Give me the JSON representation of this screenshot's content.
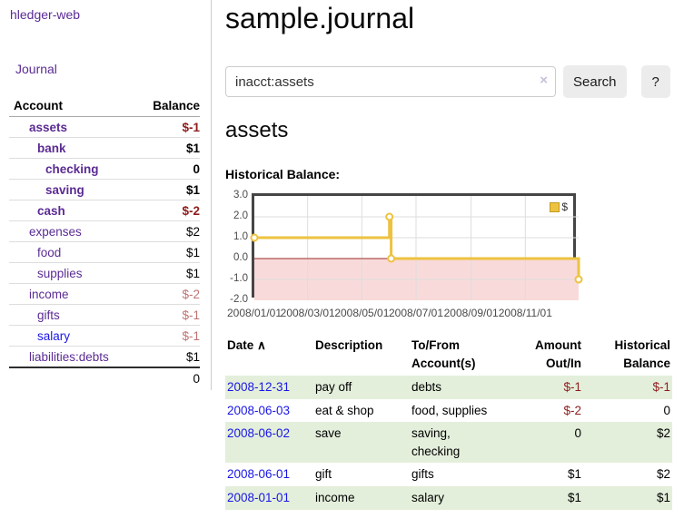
{
  "app": {
    "brand": "hledger-web"
  },
  "nav": {
    "journal": "Journal"
  },
  "header": {
    "title": "sample.journal"
  },
  "search": {
    "query": "inacct:assets",
    "clear_icon": "×",
    "button_label": "Search",
    "help_label": "?"
  },
  "account_page": {
    "heading": "assets",
    "chart_label": "Historical Balance:"
  },
  "colors": {
    "link_purple": "#5b2b94",
    "link_blue": "#1a16e8",
    "negative_strong": "#8f1d1d",
    "negative_soft": "#c17272",
    "row_highlight_green": "#e3efdb",
    "series_gold": "#EDC240"
  },
  "sidebar": {
    "header": {
      "account": "Account",
      "balance": "Balance"
    },
    "accounts": [
      {
        "name": "assets",
        "balance": "$-1",
        "indent": 1,
        "emphasized": true,
        "negative": "strong"
      },
      {
        "name": "bank",
        "balance": "$1",
        "indent": 2,
        "emphasized": true
      },
      {
        "name": "checking",
        "balance": "0",
        "indent": 3,
        "emphasized": true
      },
      {
        "name": "saving",
        "balance": "$1",
        "indent": 3,
        "emphasized": true
      },
      {
        "name": "cash",
        "balance": "$-2",
        "indent": 2,
        "emphasized": true,
        "negative": "strong"
      },
      {
        "name": "expenses",
        "balance": "$2",
        "indent": 1,
        "emphasized": false
      },
      {
        "name": "food",
        "balance": "$1",
        "indent": 2,
        "emphasized": false
      },
      {
        "name": "supplies",
        "balance": "$1",
        "indent": 2,
        "emphasized": false
      },
      {
        "name": "income",
        "balance": "$-2",
        "indent": 1,
        "emphasized": false,
        "negative": "soft"
      },
      {
        "name": "gifts",
        "balance": "$-1",
        "indent": 2,
        "emphasized": false,
        "negative": "soft"
      },
      {
        "name": "salary",
        "balance": "$-1",
        "indent": 2,
        "emphasized": false,
        "negative": "soft",
        "link_color": "blue"
      },
      {
        "name": "liabilities:debts",
        "balance": "$1",
        "indent": 1,
        "emphasized": false
      }
    ],
    "total": "0"
  },
  "chart_data": {
    "type": "line",
    "title": "Historical Balance:",
    "xlim": [
      "2008-01-01",
      "2008-12-31"
    ],
    "ylim": [
      -2,
      3
    ],
    "yticks": [
      {
        "value": 3,
        "label": "3.0"
      },
      {
        "value": 2,
        "label": "2.0"
      },
      {
        "value": 1,
        "label": "1.0"
      },
      {
        "value": 0,
        "label": "0.0"
      },
      {
        "value": -1,
        "label": "-1.0"
      },
      {
        "value": -2,
        "label": "-2.0"
      }
    ],
    "xticks": [
      {
        "date": "2008-01-01",
        "label": "2008/01/01"
      },
      {
        "date": "2008-03-01",
        "label": "2008/03/01"
      },
      {
        "date": "2008-05-01",
        "label": "2008/05/01"
      },
      {
        "date": "2008-07-01",
        "label": "2008/07/01"
      },
      {
        "date": "2008-09-01",
        "label": "2008/09/01"
      },
      {
        "date": "2008-11-01",
        "label": "2008/11/01"
      }
    ],
    "series": [
      {
        "name": "$",
        "color": "#EDC240",
        "step": true,
        "points": [
          [
            "2008-01-01",
            1
          ],
          [
            "2008-06-01",
            2
          ],
          [
            "2008-06-03",
            0
          ],
          [
            "2008-12-31",
            -1
          ]
        ]
      }
    ],
    "grid_on": true,
    "grid_color": "#dddddd",
    "negative_region_color": "#f9dada",
    "zero_line_color": "#9c2a2a",
    "legend_position": "top-right"
  },
  "register": {
    "columns": [
      {
        "label": "Date",
        "sort_indicator": "∧"
      },
      {
        "label": "Description"
      },
      {
        "label": "To/From Account(s)"
      },
      {
        "label": "Amount Out/In"
      },
      {
        "label": "Historical Balance"
      }
    ],
    "rows": [
      {
        "date": "2008-12-31",
        "description": "pay off",
        "accounts": "debts",
        "amount": "$-1",
        "amount_negative": true,
        "balance": "$-1",
        "balance_negative": true
      },
      {
        "date": "2008-06-03",
        "description": "eat & shop",
        "accounts": "food, supplies",
        "amount": "$-2",
        "amount_negative": true,
        "balance": "0",
        "balance_negative": false
      },
      {
        "date": "2008-06-02",
        "description": "save",
        "accounts": "saving, checking",
        "amount": "0",
        "amount_negative": false,
        "balance": "$2",
        "balance_negative": false
      },
      {
        "date": "2008-06-01",
        "description": "gift",
        "accounts": "gifts",
        "amount": "$1",
        "amount_negative": false,
        "balance": "$2",
        "balance_negative": false
      },
      {
        "date": "2008-01-01",
        "description": "income",
        "accounts": "salary",
        "amount": "$1",
        "amount_negative": false,
        "balance": "$1",
        "balance_negative": false
      }
    ]
  }
}
